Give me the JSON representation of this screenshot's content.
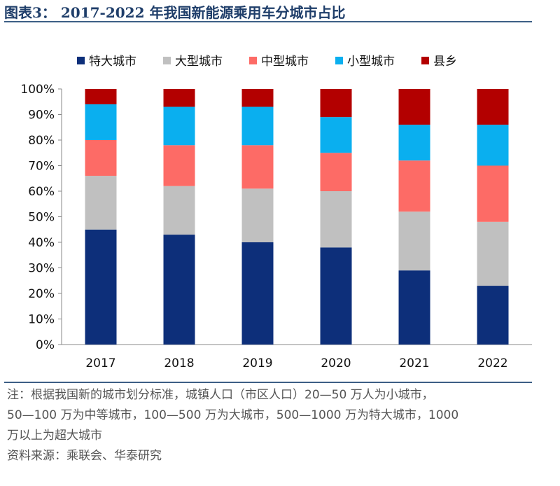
{
  "title": "图表3： 2017-2022 年我国新能源乘用车分城市占比",
  "chart_data": {
    "type": "bar",
    "stacked": true,
    "percent": true,
    "title": "2017-2022 年我国新能源乘用车分城市占比",
    "categories": [
      "2017",
      "2018",
      "2019",
      "2020",
      "2021",
      "2022"
    ],
    "series": [
      {
        "name": "特大城市",
        "color": "#0d2f7a",
        "values": [
          45,
          43,
          40,
          38,
          29,
          23
        ]
      },
      {
        "name": "大型城市",
        "color": "#c0c0c0",
        "values": [
          21,
          19,
          21,
          22,
          23,
          25
        ]
      },
      {
        "name": "中型城市",
        "color": "#fd6b66",
        "values": [
          14,
          16,
          17,
          15,
          20,
          22
        ]
      },
      {
        "name": "小型城市",
        "color": "#0aafef",
        "values": [
          14,
          15,
          15,
          14,
          14,
          16
        ]
      },
      {
        "name": "县乡",
        "color": "#b30000",
        "values": [
          6,
          7,
          7,
          11,
          14,
          14
        ]
      }
    ],
    "ylim": [
      0,
      100
    ],
    "yticks": [
      "0%",
      "10%",
      "20%",
      "30%",
      "40%",
      "50%",
      "60%",
      "70%",
      "80%",
      "90%",
      "100%"
    ],
    "legend_position": "top",
    "grid": false
  },
  "notes": [
    "注：根据我国新的城市划分标准，城镇人口（市区人口）20—50 万人为小城市，",
    "50—100 万为中等城市，100—500 万为大城市，500—1000 万为特大城市，1000",
    "万以上为超大城市",
    "资料来源：乘联会、华泰研究"
  ]
}
